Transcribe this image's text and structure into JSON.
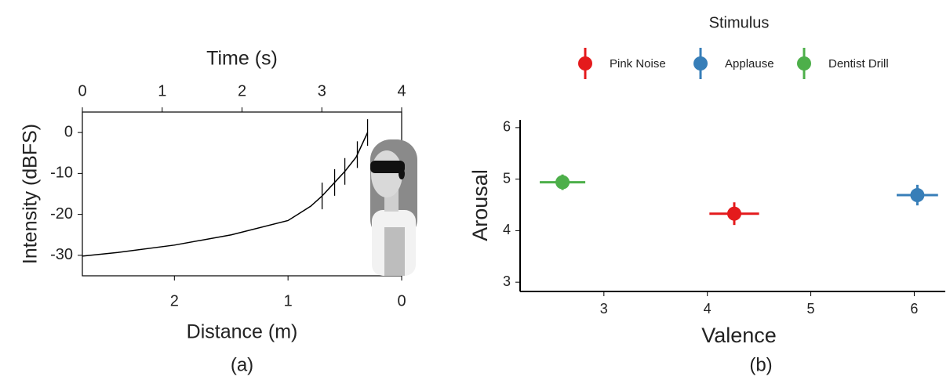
{
  "chart_data": [
    {
      "type": "line",
      "xlabel": "Distance (m)",
      "x2label": "Time (s)",
      "ylabel": "Intensity (dBFS)",
      "caption": "(a)",
      "xlim": [
        2.81,
        0
      ],
      "xticks": [
        2,
        1,
        0
      ],
      "x2lim": [
        0,
        4
      ],
      "x2ticks": [
        0,
        1,
        2,
        3,
        4
      ],
      "ylim": [
        -35,
        5
      ],
      "yticks": [
        0,
        -10,
        -20,
        -30
      ],
      "series": [
        {
          "color": "#000000",
          "x": [
            2.81,
            2.5,
            2.0,
            1.5,
            1.0,
            0.8,
            0.7,
            0.6,
            0.5,
            0.4,
            0.3
          ],
          "values": [
            -30.2,
            -29.3,
            -27.5,
            -25,
            -21.5,
            -18,
            -15.5,
            -12.5,
            -9.5,
            -6,
            0
          ]
        }
      ],
      "markers": [
        0.7,
        0.59,
        0.5,
        0.39,
        0.3
      ]
    },
    {
      "type": "scatter",
      "xlabel": "Valence",
      "ylabel": "Arousal",
      "caption": "(b)",
      "legend_title": "Stimulus",
      "xlim": [
        2.19,
        6.3
      ],
      "xticks": [
        3,
        4,
        5,
        6
      ],
      "ylim": [
        2.82,
        6.15
      ],
      "yticks": [
        3,
        4,
        5,
        6
      ],
      "series": [
        {
          "name": "Pink Noise",
          "color": "#e41a1c",
          "x": [
            4.26
          ],
          "values": [
            4.33
          ],
          "xerr": [
            0.24
          ],
          "yerr": [
            0.22
          ]
        },
        {
          "name": "Applause",
          "color": "#377eb8",
          "x": [
            6.03
          ],
          "values": [
            4.69
          ],
          "xerr": [
            0.2
          ],
          "yerr": [
            0.2
          ]
        },
        {
          "name": "Dentist Drill",
          "color": "#4daf4a",
          "x": [
            2.6
          ],
          "values": [
            4.94
          ],
          "xerr": [
            0.22
          ],
          "yerr": [
            0.15
          ]
        }
      ]
    }
  ]
}
